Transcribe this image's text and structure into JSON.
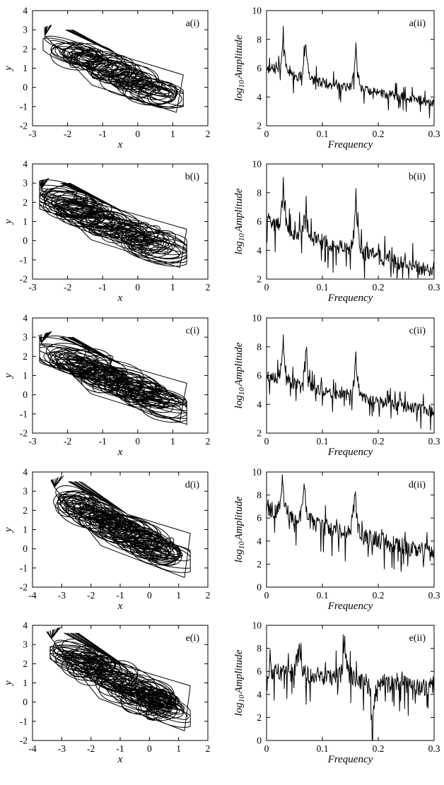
{
  "chart_data": [
    {
      "id": "a-i",
      "type": "line",
      "panel_label": "a(i)",
      "xlabel": "x",
      "ylabel": "y",
      "xlim": [
        -3,
        2
      ],
      "ylim": [
        -2,
        4
      ],
      "xticks": [
        "-3",
        "-2",
        "-1",
        "0",
        "1",
        "2"
      ],
      "yticks": [
        "-2",
        "-1",
        "0",
        "1",
        "2",
        "3",
        "4"
      ],
      "attractor": {
        "x_range": [
          -2.7,
          1.3
        ],
        "y_range": [
          -1.6,
          3.3
        ],
        "spread": 1.0,
        "seed": 11
      }
    },
    {
      "id": "a-ii",
      "type": "line",
      "panel_label": "a(ii)",
      "xlabel": "Frequency",
      "ylabel": "log10Amplitude",
      "ylabel_parts": [
        "log",
        "10",
        "Amplitude"
      ],
      "xlim": [
        0,
        0.3
      ],
      "ylim": [
        2,
        10
      ],
      "xticks": [
        "0",
        "0.1",
        "0.2",
        "0.3"
      ],
      "yticks": [
        "2",
        "4",
        "6",
        "8",
        "10"
      ],
      "peaks": [
        {
          "x": 0.03,
          "y": 8.6
        },
        {
          "x": 0.07,
          "y": 7.9
        },
        {
          "x": 0.16,
          "y": 7.8
        }
      ],
      "spectrum": {
        "base_start": 6.0,
        "base_end": 3.6,
        "noise": 0.35,
        "seed": 21
      }
    },
    {
      "id": "b-i",
      "type": "line",
      "panel_label": "b(i)",
      "xlabel": "x",
      "ylabel": "y",
      "xlim": [
        -3,
        2
      ],
      "ylim": [
        -2,
        4
      ],
      "xticks": [
        "-3",
        "-2",
        "-1",
        "0",
        "1",
        "2"
      ],
      "yticks": [
        "-2",
        "-1",
        "0",
        "1",
        "2",
        "3",
        "4"
      ],
      "attractor": {
        "x_range": [
          -2.8,
          1.4
        ],
        "y_range": [
          -1.7,
          3.3
        ],
        "spread": 1.4,
        "seed": 12
      }
    },
    {
      "id": "b-ii",
      "type": "line",
      "panel_label": "b(ii)",
      "xlabel": "Frequency",
      "ylabel": "log10Amplitude",
      "ylabel_parts": [
        "log",
        "10",
        "Amplitude"
      ],
      "xlim": [
        0,
        0.3
      ],
      "ylim": [
        2,
        10
      ],
      "xticks": [
        "0",
        "0.1",
        "0.2",
        "0.3"
      ],
      "yticks": [
        "2",
        "4",
        "6",
        "8",
        "10"
      ],
      "peaks": [
        {
          "x": 0.03,
          "y": 8.6
        },
        {
          "x": 0.07,
          "y": 8.0
        },
        {
          "x": 0.16,
          "y": 7.8
        }
      ],
      "spectrum": {
        "base_start": 6.0,
        "base_end": 2.6,
        "noise": 0.55,
        "seed": 22
      }
    },
    {
      "id": "c-i",
      "type": "line",
      "panel_label": "c(i)",
      "xlabel": "x",
      "ylabel": "y",
      "xlim": [
        -3,
        2
      ],
      "ylim": [
        -2,
        4
      ],
      "xticks": [
        "-3",
        "-2",
        "-1",
        "0",
        "1",
        "2"
      ],
      "yticks": [
        "-2",
        "-1",
        "0",
        "1",
        "2",
        "3",
        "4"
      ],
      "attractor": {
        "x_range": [
          -2.8,
          1.4
        ],
        "y_range": [
          -1.7,
          3.3
        ],
        "spread": 1.6,
        "seed": 13
      }
    },
    {
      "id": "c-ii",
      "type": "line",
      "panel_label": "c(ii)",
      "xlabel": "Frequency",
      "ylabel": "log10Amplitude",
      "ylabel_parts": [
        "log",
        "10",
        "Amplitude"
      ],
      "xlim": [
        0,
        0.3
      ],
      "ylim": [
        2,
        10
      ],
      "xticks": [
        "0",
        "0.1",
        "0.2",
        "0.3"
      ],
      "yticks": [
        "2",
        "4",
        "6",
        "8",
        "10"
      ],
      "peaks": [
        {
          "x": 0.03,
          "y": 8.5
        },
        {
          "x": 0.07,
          "y": 8.0
        },
        {
          "x": 0.16,
          "y": 7.7
        }
      ],
      "spectrum": {
        "base_start": 6.0,
        "base_end": 3.5,
        "noise": 0.4,
        "seed": 23
      }
    },
    {
      "id": "d-i",
      "type": "line",
      "panel_label": "d(i)",
      "xlabel": "x",
      "ylabel": "y",
      "xlim": [
        -4,
        2
      ],
      "ylim": [
        -2,
        4
      ],
      "xticks": [
        "-4",
        "-3",
        "-2",
        "-1",
        "0",
        "1",
        "2"
      ],
      "yticks": [
        "-2",
        "-1",
        "0",
        "1",
        "2",
        "3",
        "4"
      ],
      "attractor": {
        "x_range": [
          -3.3,
          1.4
        ],
        "y_range": [
          -1.8,
          3.8
        ],
        "spread": 1.9,
        "seed": 14
      }
    },
    {
      "id": "d-ii",
      "type": "line",
      "panel_label": "d(ii)",
      "xlabel": "Frequency",
      "ylabel": "log10Amplitude",
      "ylabel_parts": [
        "log",
        "10",
        "Amplitude"
      ],
      "xlim": [
        0,
        0.3
      ],
      "ylim": [
        0,
        10
      ],
      "xticks": [
        "0",
        "0.1",
        "0.2",
        "0.3"
      ],
      "yticks": [
        "0",
        "2",
        "4",
        "6",
        "8",
        "10"
      ],
      "peaks": [
        {
          "x": 0.028,
          "y": 9.6
        },
        {
          "x": 0.068,
          "y": 9.2
        },
        {
          "x": 0.158,
          "y": 8.8
        }
      ],
      "spectrum": {
        "base_start": 7.0,
        "base_end": 2.9,
        "noise": 0.75,
        "seed": 24
      }
    },
    {
      "id": "e-i",
      "type": "line",
      "panel_label": "e(i)",
      "xlabel": "x",
      "ylabel": "y",
      "xlim": [
        -4,
        2
      ],
      "ylim": [
        -2,
        4
      ],
      "xticks": [
        "-4",
        "-3",
        "-2",
        "-1",
        "0",
        "1",
        "2"
      ],
      "yticks": [
        "-2",
        "-1",
        "0",
        "1",
        "2",
        "3",
        "4"
      ],
      "attractor": {
        "x_range": [
          -3.4,
          1.4
        ],
        "y_range": [
          -1.8,
          3.9
        ],
        "spread": 2.3,
        "seed": 15
      }
    },
    {
      "id": "e-ii",
      "type": "line",
      "panel_label": "e(ii)",
      "xlabel": "Frequency",
      "ylabel": "log10Amplitude",
      "ylabel_parts": [
        "log",
        "10",
        "Amplitude"
      ],
      "xlim": [
        0,
        0.3
      ],
      "ylim": [
        0,
        10
      ],
      "xticks": [
        "0",
        "0.1",
        "0.2",
        "0.3"
      ],
      "yticks": [
        "0",
        "2",
        "4",
        "6",
        "8",
        "10"
      ],
      "peaks": [
        {
          "x": 0.058,
          "y": 9.0
        },
        {
          "x": 0.14,
          "y": 8.5
        },
        {
          "x": 0.19,
          "y": 1.3
        }
      ],
      "spectrum": {
        "base_start": 6.2,
        "base_end": 4.6,
        "noise": 0.8,
        "seed": 25
      }
    }
  ]
}
